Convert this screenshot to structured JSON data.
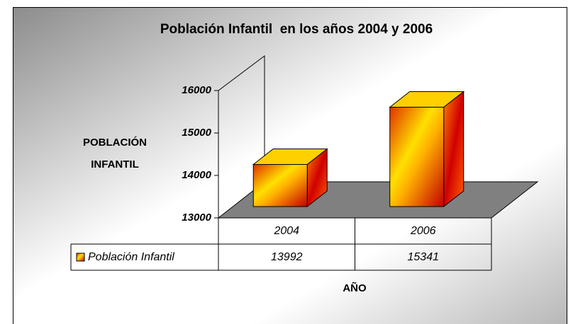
{
  "chart_data": {
    "type": "bar3d",
    "title": "Población Infantil  en los años 2004 y 2006",
    "y_label": [
      "POBLACIÓN",
      "INFANTIL"
    ],
    "x_label": "AÑO",
    "categories": [
      "2004",
      "2006"
    ],
    "series": [
      {
        "name": "Población Infantil",
        "color": "#ff9900",
        "values": [
          13992,
          15341
        ]
      }
    ],
    "ylim": [
      13000,
      16000
    ],
    "yticks": [
      13000,
      14000,
      15000,
      16000
    ],
    "legend": "table"
  }
}
